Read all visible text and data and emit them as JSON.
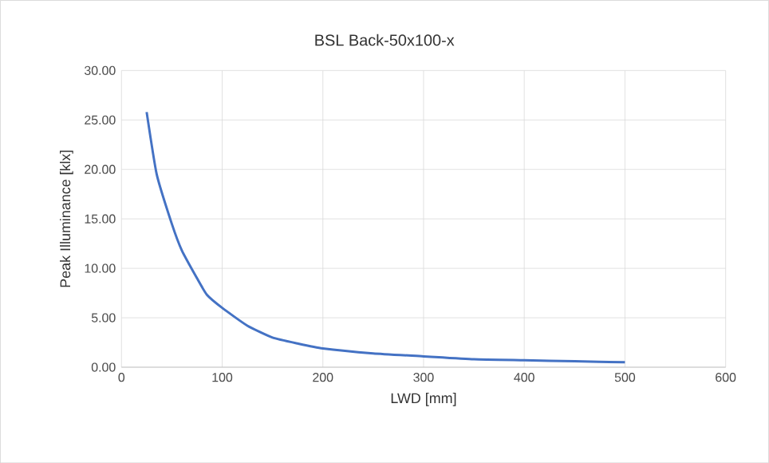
{
  "chart_data": {
    "type": "line",
    "title": "BSL Back-50x100-x",
    "xlabel": "LWD [mm]",
    "ylabel": "Peak Illuminance [klx]",
    "x": [
      25,
      35,
      50,
      60,
      75,
      85,
      100,
      125,
      150,
      175,
      200,
      250,
      300,
      350,
      400,
      450,
      500
    ],
    "series": [
      {
        "color": "#4472c4",
        "values": [
          25.8,
          19.5,
          14.5,
          11.8,
          9.0,
          7.3,
          6.0,
          4.2,
          3.0,
          2.4,
          1.9,
          1.4,
          1.1,
          0.8,
          0.7,
          0.6,
          0.5
        ]
      }
    ],
    "xlim": [
      0,
      600
    ],
    "xticks": [
      0,
      100,
      200,
      300,
      400,
      500,
      600
    ],
    "ylim": [
      0,
      30
    ],
    "yticks": [
      {
        "value": 0,
        "label": "0.00"
      },
      {
        "value": 5,
        "label": "5.00"
      },
      {
        "value": 10,
        "label": "10.00"
      },
      {
        "value": 15,
        "label": "15.00"
      },
      {
        "value": 20,
        "label": "20.00"
      },
      {
        "value": 25,
        "label": "25.00"
      },
      {
        "value": 30,
        "label": "30.00"
      }
    ],
    "grid": true,
    "marker": "none",
    "line_style": "solid"
  }
}
